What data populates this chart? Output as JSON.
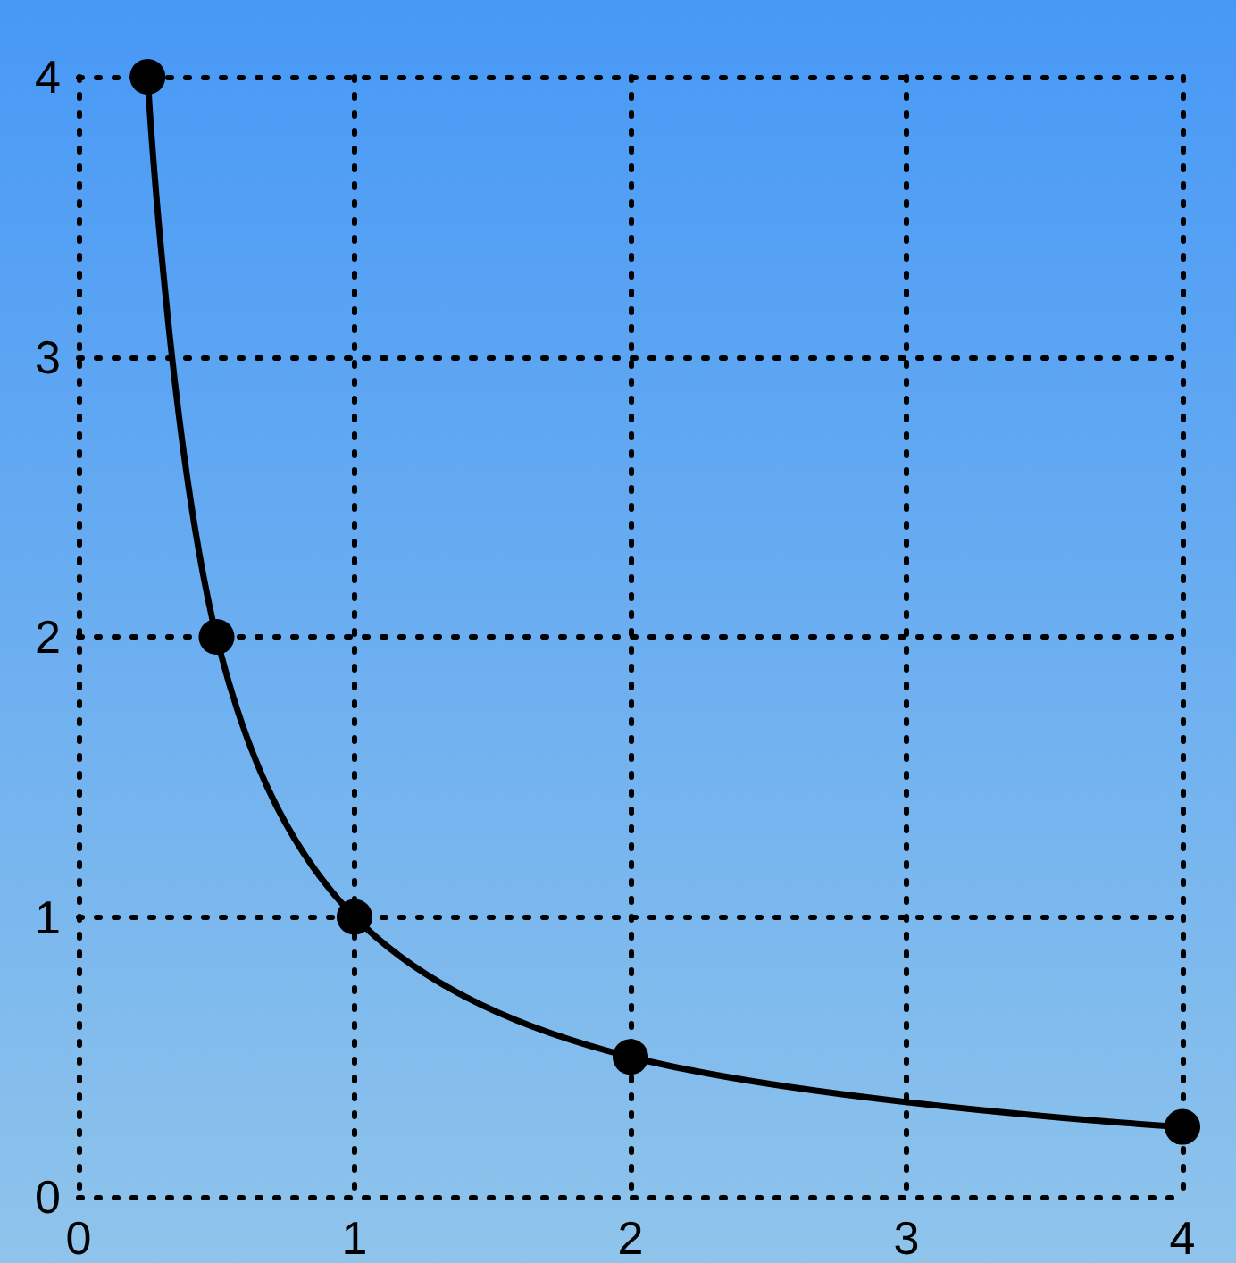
{
  "chart_data": {
    "type": "line",
    "x": [
      0.25,
      0.5,
      1,
      2,
      4
    ],
    "series": [
      {
        "color": "#000000",
        "values": [
          4,
          2,
          1,
          0.5,
          0.25
        ]
      }
    ],
    "xlim": [
      0,
      4
    ],
    "ylim": [
      0,
      4
    ],
    "xticks": [
      0,
      1,
      2,
      3,
      4
    ],
    "yticks": [
      0,
      1,
      2,
      3,
      4
    ],
    "grid": true,
    "marker": "circle",
    "line_style": "solid"
  }
}
